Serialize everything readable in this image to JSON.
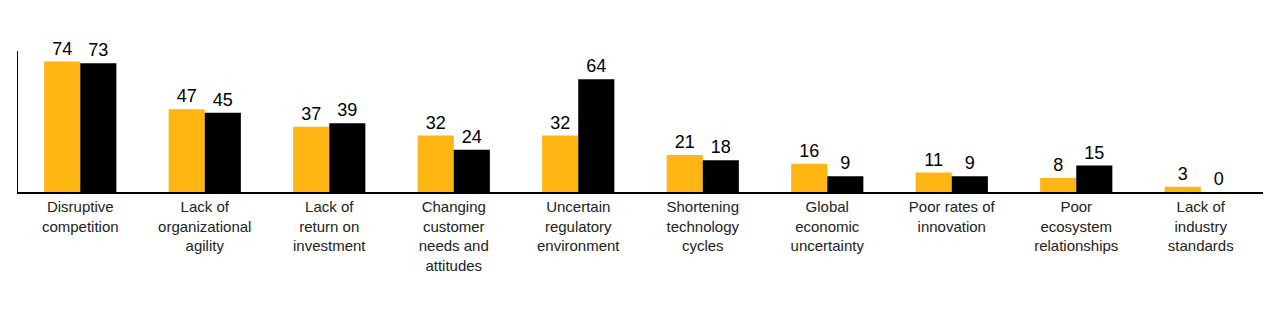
{
  "chart_data": {
    "type": "bar",
    "categories": [
      "Disruptive competition",
      "Lack of organizational agility",
      "Lack of return on investment",
      "Changing customer needs and attitudes",
      "Uncertain regulatory environment",
      "Shortening technology cycles",
      "Global economic uncertainty",
      "Poor rates of innovation",
      "Poor ecosystem relationships",
      "Lack of industry standards"
    ],
    "series": [
      {
        "color": "#ffb612",
        "values": [
          74,
          47,
          37,
          32,
          32,
          21,
          16,
          11,
          8,
          3
        ]
      },
      {
        "color": "#000000",
        "values": [
          73,
          45,
          39,
          24,
          64,
          18,
          9,
          9,
          15,
          0
        ]
      }
    ],
    "ylim": [
      0,
      80
    ],
    "yticks": [],
    "grid": false,
    "data_labels": true,
    "tick_labels": "x"
  }
}
